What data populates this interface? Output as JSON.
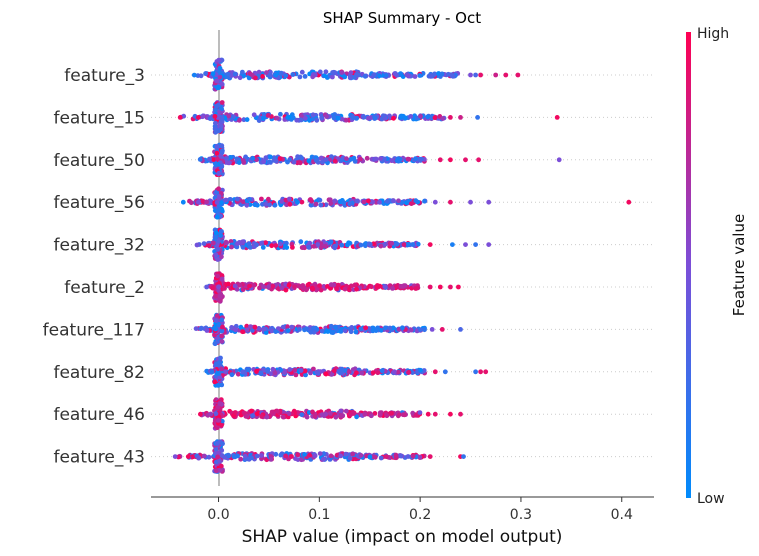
{
  "chart_data": {
    "type": "scatter",
    "subtype": "shap-beeswarm-summary",
    "title": "SHAP Summary - Oct",
    "xlabel": "SHAP value (impact on model output)",
    "xlim": [
      -0.067,
      0.432
    ],
    "xticks": [
      0.0,
      0.1,
      0.2,
      0.3,
      0.4
    ],
    "xtick_labels": [
      "0.0",
      "0.1",
      "0.2",
      "0.3",
      "0.4"
    ],
    "grid": false,
    "colorbar": {
      "label": "Feature value",
      "high_label": "High",
      "low_label": "Low",
      "high_color": "#ff0052",
      "mid_color": "#7b4ed8",
      "low_color": "#008bfb"
    },
    "features": [
      {
        "name": "feature_3",
        "min": -0.025,
        "max": 0.297,
        "dense_end": 0.24,
        "tendency": 0.15,
        "outliers": [
          [
            0.25,
            0.5
          ],
          [
            0.26,
            0.9
          ],
          [
            0.275,
            0.8
          ],
          [
            0.285,
            0.9
          ],
          [
            0.297,
            0.9
          ],
          [
            0.255,
            0.3
          ]
        ]
      },
      {
        "name": "feature_15",
        "min": -0.038,
        "max": 0.336,
        "dense_end": 0.225,
        "tendency": 0.25,
        "outliers": [
          [
            -0.038,
            0.95
          ],
          [
            -0.02,
            0.95
          ],
          [
            0.23,
            0.9
          ],
          [
            0.24,
            0.8
          ],
          [
            0.257,
            0.2
          ],
          [
            0.336,
            0.95
          ]
        ]
      },
      {
        "name": "feature_50",
        "min": -0.02,
        "max": 0.338,
        "dense_end": 0.21,
        "tendency": 0.3,
        "outliers": [
          [
            0.22,
            0.9
          ],
          [
            0.23,
            0.95
          ],
          [
            0.245,
            0.9
          ],
          [
            0.258,
            0.9
          ],
          [
            0.338,
            0.5
          ]
        ]
      },
      {
        "name": "feature_56",
        "min": -0.035,
        "max": 0.407,
        "dense_end": 0.205,
        "tendency": 0.4,
        "outliers": [
          [
            -0.035,
            0.05
          ],
          [
            -0.02,
            0.5
          ],
          [
            0.215,
            0.5
          ],
          [
            0.23,
            0.9
          ],
          [
            0.25,
            0.5
          ],
          [
            0.268,
            0.5
          ],
          [
            0.407,
            0.95
          ]
        ]
      },
      {
        "name": "feature_32",
        "min": -0.022,
        "max": 0.268,
        "dense_end": 0.2,
        "tendency": 0.4,
        "outliers": [
          [
            0.21,
            0.95
          ],
          [
            0.232,
            0.1
          ],
          [
            0.245,
            0.5
          ],
          [
            0.255,
            0.2
          ],
          [
            0.268,
            0.5
          ]
        ]
      },
      {
        "name": "feature_2",
        "min": -0.012,
        "max": 0.238,
        "dense_end": 0.2,
        "tendency": 0.9,
        "outliers": [
          [
            0.21,
            0.9
          ],
          [
            0.22,
            0.95
          ],
          [
            0.23,
            0.9
          ],
          [
            0.238,
            0.95
          ]
        ]
      },
      {
        "name": "feature_117",
        "min": -0.025,
        "max": 0.24,
        "dense_end": 0.205,
        "tendency": 0.35,
        "outliers": [
          [
            0.212,
            0.5
          ],
          [
            0.222,
            0.9
          ],
          [
            0.24,
            0.3
          ]
        ]
      },
      {
        "name": "feature_82",
        "min": -0.012,
        "max": 0.265,
        "dense_end": 0.205,
        "tendency": 0.4,
        "outliers": [
          [
            0.215,
            0.9
          ],
          [
            0.225,
            0.2
          ],
          [
            0.255,
            0.2
          ],
          [
            0.26,
            0.9
          ],
          [
            0.265,
            0.9
          ]
        ]
      },
      {
        "name": "feature_46",
        "min": -0.018,
        "max": 0.24,
        "dense_end": 0.2,
        "tendency": 0.92,
        "outliers": [
          [
            -0.018,
            0.95
          ],
          [
            0.208,
            0.95
          ],
          [
            0.215,
            0.9
          ],
          [
            0.23,
            0.95
          ],
          [
            0.24,
            0.9
          ]
        ]
      },
      {
        "name": "feature_43",
        "min": -0.043,
        "max": 0.243,
        "dense_end": 0.205,
        "tendency": 0.5,
        "outliers": [
          [
            -0.043,
            0.5
          ],
          [
            -0.03,
            0.95
          ],
          [
            0.21,
            0.9
          ],
          [
            0.24,
            0.95
          ],
          [
            0.243,
            0.2
          ]
        ]
      }
    ]
  }
}
